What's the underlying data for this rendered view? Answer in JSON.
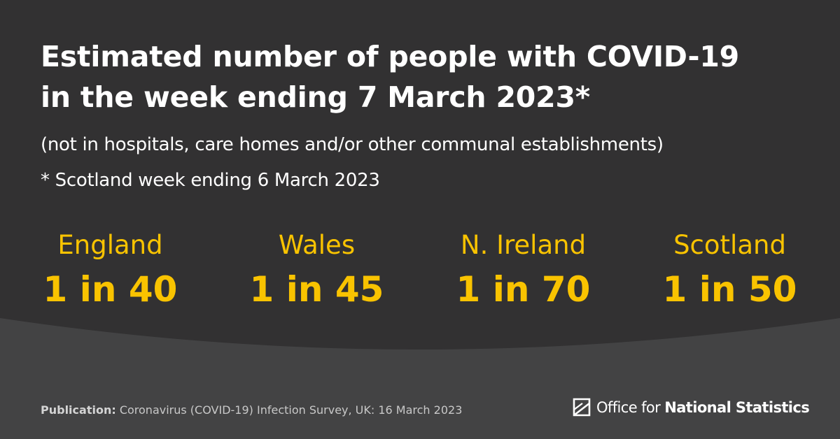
{
  "headline": {
    "line1": "Estimated number of people with COVID-19",
    "line2": "in the week ending 7 March 2023*"
  },
  "subtitle": "(not in hospitals, care homes and/or other communal establishments)",
  "footnote": "* Scotland week ending 6 March 2023",
  "stats": [
    {
      "region": "England",
      "value": "1 in 40"
    },
    {
      "region": "Wales",
      "value": "1 in 45"
    },
    {
      "region": "N. Ireland",
      "value": "1 in 70"
    },
    {
      "region": "Scotland",
      "value": "1 in 50"
    }
  ],
  "footer": {
    "publication_label": "Publication:",
    "publication_text": "Coronavirus (COVID-19) Infection Survey, UK: 16 March 2023"
  },
  "logo": {
    "text_light": "Office for",
    "text_bold": "National Statistics",
    "icon": "ons-logo-icon"
  },
  "colors": {
    "background": "#323132",
    "background_lower": "#434344",
    "accent": "#f9c300",
    "text": "#ffffff"
  }
}
